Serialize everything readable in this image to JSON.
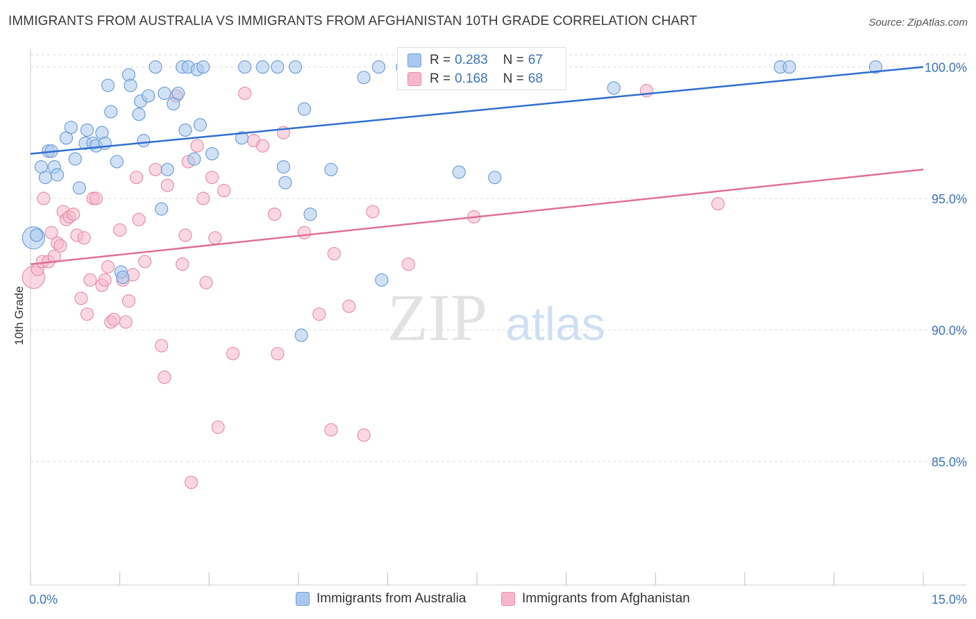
{
  "title": "IMMIGRANTS FROM AUSTRALIA VS IMMIGRANTS FROM AFGHANISTAN 10TH GRADE CORRELATION CHART",
  "source": "Source: ZipAtlas.com",
  "watermark": {
    "zip": "ZIP",
    "atlas": "atlas"
  },
  "stats": [
    {
      "r_label": "R =",
      "r_value": "0.283",
      "n_label": "N =",
      "n_value": "67"
    },
    {
      "r_label": "R =",
      "r_value": "0.168",
      "n_label": "N =",
      "n_value": "68"
    }
  ],
  "colors": {
    "australia_fill": "#aac8ee",
    "australia_stroke": "#6f9fd8",
    "australia_line": "#2f6fcf",
    "afghanistan_fill": "#f5b8cb",
    "afghanistan_stroke": "#e98fab",
    "afghanistan_line": "#e06f98",
    "tick_text": "#3b73c4",
    "grid": "#dddddd"
  },
  "chart_data": {
    "type": "scatter",
    "title": "IMMIGRANTS FROM AUSTRALIA VS IMMIGRANTS FROM AFGHANISTAN 10TH GRADE CORRELATION CHART",
    "xlabel": "",
    "ylabel": "10th Grade",
    "xlim": [
      0,
      15
    ],
    "ylim": [
      80.3,
      100.7
    ],
    "x_tick_labels": [
      "0.0%",
      "15.0%"
    ],
    "y_ticks": [
      85,
      90,
      95,
      100
    ],
    "y_tick_labels": [
      "85.0%",
      "90.0%",
      "95.0%",
      "100.0%"
    ],
    "grid": "horizontal dashed",
    "legend_position": "bottom-center",
    "series": [
      {
        "name": "Immigrants from Australia",
        "trend": {
          "x": [
            0,
            15
          ],
          "y": [
            96.7,
            100.0
          ]
        },
        "points": [
          [
            0.05,
            93.5
          ],
          [
            0.1,
            93.6
          ],
          [
            0.18,
            96.2
          ],
          [
            0.25,
            95.8
          ],
          [
            0.3,
            96.8
          ],
          [
            0.35,
            96.8
          ],
          [
            0.4,
            96.2
          ],
          [
            0.45,
            95.9
          ],
          [
            0.6,
            97.3
          ],
          [
            0.68,
            97.7
          ],
          [
            0.75,
            96.5
          ],
          [
            0.82,
            95.4
          ],
          [
            0.92,
            97.1
          ],
          [
            0.95,
            97.6
          ],
          [
            1.05,
            97.1
          ],
          [
            1.1,
            97.0
          ],
          [
            1.2,
            97.5
          ],
          [
            1.25,
            97.1
          ],
          [
            1.3,
            99.3
          ],
          [
            1.35,
            98.3
          ],
          [
            1.45,
            96.4
          ],
          [
            1.52,
            92.2
          ],
          [
            1.55,
            92.0
          ],
          [
            1.65,
            99.7
          ],
          [
            1.68,
            99.3
          ],
          [
            1.82,
            98.2
          ],
          [
            1.85,
            98.7
          ],
          [
            1.9,
            97.2
          ],
          [
            1.98,
            98.9
          ],
          [
            2.1,
            100.0
          ],
          [
            2.2,
            94.6
          ],
          [
            2.25,
            99.0
          ],
          [
            2.3,
            96.1
          ],
          [
            2.4,
            98.6
          ],
          [
            2.48,
            99.0
          ],
          [
            2.55,
            100.0
          ],
          [
            2.6,
            97.6
          ],
          [
            2.65,
            100.0
          ],
          [
            2.75,
            96.5
          ],
          [
            2.8,
            99.9
          ],
          [
            2.85,
            97.8
          ],
          [
            2.9,
            100.0
          ],
          [
            3.05,
            96.7
          ],
          [
            3.55,
            97.3
          ],
          [
            3.6,
            100.0
          ],
          [
            3.9,
            100.0
          ],
          [
            4.15,
            100.0
          ],
          [
            4.25,
            96.2
          ],
          [
            4.28,
            95.6
          ],
          [
            4.45,
            100.0
          ],
          [
            4.6,
            98.4
          ],
          [
            4.7,
            94.4
          ],
          [
            4.55,
            89.8
          ],
          [
            5.05,
            96.1
          ],
          [
            5.6,
            99.6
          ],
          [
            5.85,
            100.0
          ],
          [
            5.9,
            91.9
          ],
          [
            6.25,
            100.0
          ],
          [
            6.55,
            100.0
          ],
          [
            7.2,
            96.0
          ],
          [
            7.8,
            95.8
          ],
          [
            9.8,
            99.2
          ],
          [
            12.6,
            100.0
          ],
          [
            12.75,
            100.0
          ],
          [
            14.2,
            100.0
          ]
        ]
      },
      {
        "name": "Immigrants from Afghanistan",
        "trend": {
          "x": [
            0,
            15
          ],
          "y": [
            92.5,
            96.1
          ]
        },
        "points": [
          [
            0.05,
            92.0
          ],
          [
            0.12,
            92.3
          ],
          [
            0.2,
            92.6
          ],
          [
            0.22,
            95.0
          ],
          [
            0.3,
            92.6
          ],
          [
            0.35,
            93.7
          ],
          [
            0.4,
            92.8
          ],
          [
            0.45,
            93.3
          ],
          [
            0.5,
            93.2
          ],
          [
            0.55,
            94.5
          ],
          [
            0.6,
            94.2
          ],
          [
            0.65,
            94.3
          ],
          [
            0.72,
            94.4
          ],
          [
            0.78,
            93.6
          ],
          [
            0.85,
            91.2
          ],
          [
            0.9,
            93.5
          ],
          [
            0.95,
            90.6
          ],
          [
            1.0,
            91.9
          ],
          [
            1.05,
            95.0
          ],
          [
            1.1,
            95.0
          ],
          [
            1.2,
            91.7
          ],
          [
            1.25,
            91.9
          ],
          [
            1.3,
            92.4
          ],
          [
            1.35,
            90.3
          ],
          [
            1.4,
            90.4
          ],
          [
            1.5,
            93.8
          ],
          [
            1.55,
            91.9
          ],
          [
            1.6,
            90.3
          ],
          [
            1.65,
            91.1
          ],
          [
            1.72,
            92.1
          ],
          [
            1.78,
            95.8
          ],
          [
            1.82,
            94.2
          ],
          [
            1.92,
            92.6
          ],
          [
            2.1,
            96.1
          ],
          [
            2.2,
            89.4
          ],
          [
            2.25,
            88.2
          ],
          [
            2.3,
            95.5
          ],
          [
            2.45,
            98.9
          ],
          [
            2.55,
            92.5
          ],
          [
            2.6,
            93.6
          ],
          [
            2.65,
            96.4
          ],
          [
            2.7,
            84.2
          ],
          [
            2.8,
            97.0
          ],
          [
            2.9,
            95.0
          ],
          [
            2.95,
            91.8
          ],
          [
            3.05,
            95.8
          ],
          [
            3.1,
            93.5
          ],
          [
            3.15,
            86.3
          ],
          [
            3.25,
            95.3
          ],
          [
            3.4,
            89.1
          ],
          [
            3.6,
            99.0
          ],
          [
            3.75,
            97.2
          ],
          [
            3.9,
            97.0
          ],
          [
            4.1,
            94.4
          ],
          [
            4.15,
            89.1
          ],
          [
            4.25,
            97.5
          ],
          [
            4.6,
            93.7
          ],
          [
            4.85,
            90.6
          ],
          [
            5.05,
            86.2
          ],
          [
            5.1,
            92.9
          ],
          [
            5.35,
            90.9
          ],
          [
            5.6,
            86.0
          ],
          [
            5.75,
            94.5
          ],
          [
            6.35,
            92.5
          ],
          [
            6.5,
            100.0
          ],
          [
            7.45,
            94.3
          ],
          [
            10.35,
            99.1
          ],
          [
            11.55,
            94.8
          ]
        ]
      }
    ]
  },
  "legend": {
    "australia_label": "Immigrants from Australia",
    "afghanistan_label": "Immigrants from Afghanistan"
  }
}
